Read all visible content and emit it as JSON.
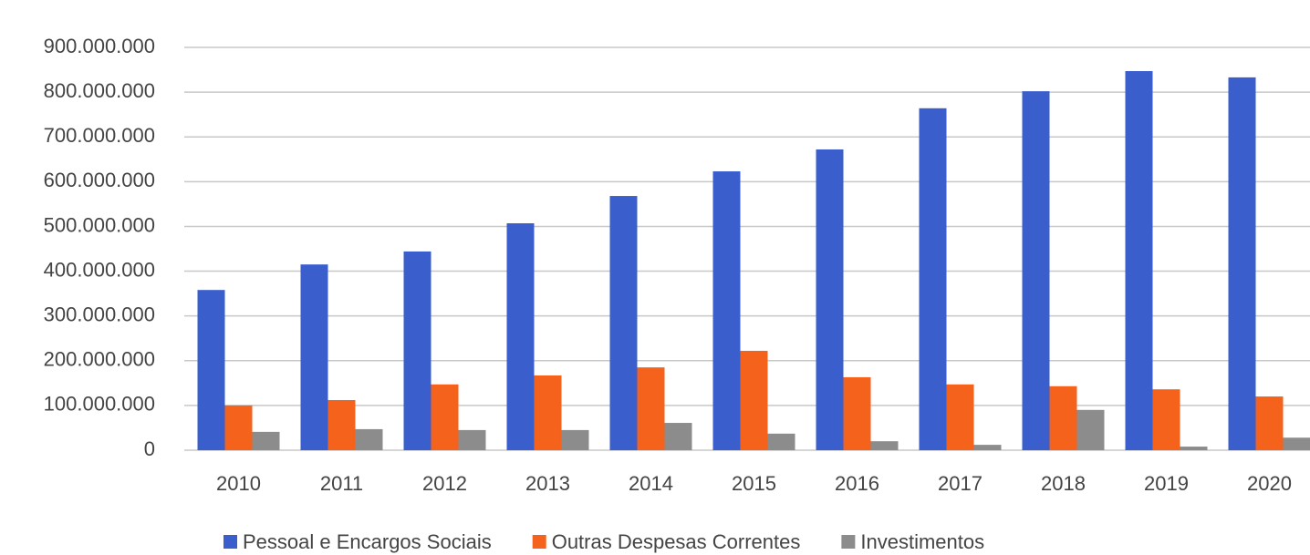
{
  "chart_data": {
    "type": "bar",
    "categories": [
      "2010",
      "2011",
      "2012",
      "2013",
      "2014",
      "2015",
      "2016",
      "2017",
      "2018",
      "2019",
      "2020"
    ],
    "series": [
      {
        "name": "Pessoal e Encargos Sociais",
        "color": "#3a5fcd",
        "values": [
          358000000,
          415000000,
          444000000,
          507000000,
          568000000,
          623000000,
          672000000,
          764000000,
          802000000,
          847000000,
          833000000
        ]
      },
      {
        "name": "Outras Despesas Correntes",
        "color": "#f4621c",
        "values": [
          100000000,
          112000000,
          147000000,
          167000000,
          185000000,
          222000000,
          163000000,
          147000000,
          143000000,
          136000000,
          120000000
        ]
      },
      {
        "name": "Investimentos",
        "color": "#8c8c8c",
        "values": [
          41000000,
          47000000,
          45000000,
          45000000,
          61000000,
          37000000,
          20000000,
          12000000,
          90000000,
          8000000,
          28000000
        ]
      }
    ],
    "ylim": [
      0,
      900000000
    ],
    "yticks": [
      0,
      {
        "value": 100000000,
        "label": "100.000.000"
      },
      {
        "value": 200000000,
        "label": "200.000.000"
      },
      {
        "value": 300000000,
        "label": "300.000.000"
      },
      {
        "value": 400000000,
        "label": "400.000.000"
      },
      {
        "value": 500000000,
        "label": "500.000.000"
      },
      {
        "value": 600000000,
        "label": "600.000.000"
      },
      {
        "value": 700000000,
        "label": "700.000.000"
      },
      {
        "value": 800000000,
        "label": "800.000.000"
      },
      {
        "value": 900000000,
        "label": "900.000.000"
      }
    ],
    "grid": true,
    "legend": "bottom"
  }
}
